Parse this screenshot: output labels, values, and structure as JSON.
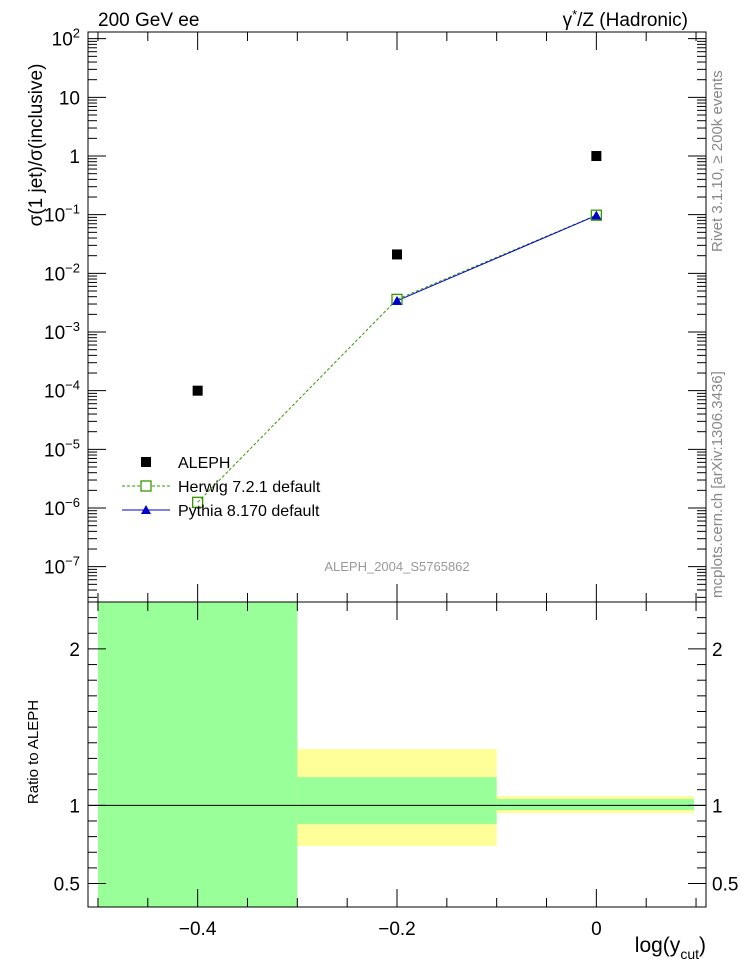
{
  "header": {
    "left": "200 GeV ee",
    "right_sup": "*",
    "right_pre": "γ",
    "right_post": "/Z (Hadronic)"
  },
  "side_text": {
    "rivet": "Rivet 3.1.10, ≥ 200k events",
    "mcplots": "mcplots.cern.ch [arXiv:1306.3436]"
  },
  "analysis_label": "ALEPH_2004_S5765862",
  "colors": {
    "data": "#000000",
    "herwig": "#339900",
    "pythia": "#0000cc",
    "band_inner": "#99ff99",
    "band_outer": "#ffff99"
  },
  "chart_data": [
    {
      "type": "scatter",
      "panel": "main",
      "ylabel": "σ(1 jet)/σ(inclusive)",
      "yscale": "log",
      "ylim": [
        2.5e-08,
        130
      ],
      "xlim": [
        -0.51,
        0.11
      ],
      "yticks": [
        {
          "value": 1e-07,
          "base": "10",
          "exp": "−7"
        },
        {
          "value": 1e-06,
          "base": "10",
          "exp": "−6"
        },
        {
          "value": 1e-05,
          "base": "10",
          "exp": "−5"
        },
        {
          "value": 0.0001,
          "base": "10",
          "exp": "−4"
        },
        {
          "value": 0.001,
          "base": "10",
          "exp": "−3"
        },
        {
          "value": 0.01,
          "base": "10",
          "exp": "−2"
        },
        {
          "value": 0.1,
          "base": "10",
          "exp": "−1"
        },
        {
          "value": 1,
          "base": "1",
          "exp": ""
        },
        {
          "value": 10,
          "base": "10",
          "exp": ""
        },
        {
          "value": 100,
          "base": "10",
          "exp": "2"
        }
      ],
      "x": [
        -0.4,
        -0.2,
        0.0
      ],
      "series": [
        {
          "name": "ALEPH",
          "style": "data",
          "values": [
            0.0001,
            0.021,
            1.0
          ]
        },
        {
          "name": "Herwig 7.2.1 default",
          "style": "herwig",
          "values": [
            1.25e-06,
            0.0036,
            0.098
          ]
        },
        {
          "name": "Pythia 8.170 default",
          "style": "pythia",
          "values": [
            null,
            0.0034,
            0.097
          ]
        }
      ],
      "legend": [
        "ALEPH",
        "Herwig 7.2.1 default",
        "Pythia 8.170 default"
      ],
      "legend_position": "bottom-left"
    },
    {
      "type": "area",
      "panel": "ratio",
      "ylabel": "Ratio to ALEPH",
      "xlabel_main": "log(y",
      "xlabel_sub": "cut",
      "xlabel_close": ")",
      "ylim": [
        0.35,
        2.3
      ],
      "xlim": [
        -0.51,
        0.11
      ],
      "xticks": [
        {
          "value": -0.4,
          "label": "−0.4"
        },
        {
          "value": -0.2,
          "label": "−0.2"
        },
        {
          "value": 0.0,
          "label": "0"
        }
      ],
      "yticks": [
        {
          "value": 0.5,
          "label": "0.5"
        },
        {
          "value": 1,
          "label": "1"
        },
        {
          "value": 2,
          "label": "2"
        }
      ],
      "bins": [
        {
          "x0": -0.5,
          "x1": -0.3,
          "inner": [
            0.35,
            2.3
          ],
          "outer": [
            0.35,
            2.3
          ]
        },
        {
          "x0": -0.3,
          "x1": -0.1,
          "inner": [
            0.88,
            1.18
          ],
          "outer": [
            0.74,
            1.36
          ]
        },
        {
          "x0": -0.1,
          "x1": 0.1,
          "inner": [
            0.97,
            1.04
          ],
          "outer": [
            0.95,
            1.06
          ]
        }
      ],
      "reference": 1
    }
  ]
}
